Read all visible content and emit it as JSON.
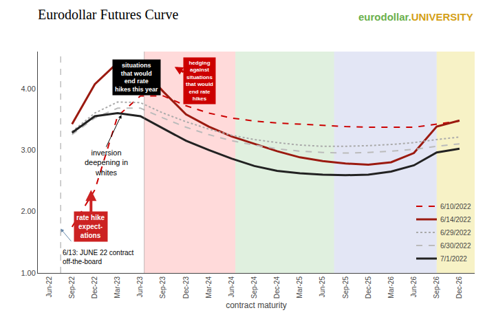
{
  "chart_data": {
    "type": "line",
    "title": "Eurodollar Futures Curve",
    "xlabel": "contract maturity",
    "categories": [
      "Jun-22",
      "Sep-22",
      "Dec-22",
      "Mar-23",
      "Jun-23",
      "Sep-23",
      "Dec-23",
      "Mar-24",
      "Jun-24",
      "Sep-24",
      "Dec-24",
      "Mar-25",
      "Jun-25",
      "Sep-25",
      "Dec-25",
      "Mar-26",
      "Jun-26",
      "Sep-26",
      "Dec-26"
    ],
    "series": [
      {
        "name": "6/10/2022",
        "color": "#cc0000",
        "line_style": "dashed",
        "values": [
          null,
          1.75,
          2.35,
          3.55,
          3.88,
          3.88,
          3.72,
          3.6,
          3.52,
          3.47,
          3.44,
          3.42,
          3.4,
          3.38,
          3.37,
          3.37,
          3.37,
          3.42,
          3.47
        ]
      },
      {
        "name": "6/14/2022",
        "color": "#9b1a10",
        "line_style": "solid",
        "values": [
          null,
          3.42,
          4.07,
          4.42,
          4.35,
          3.95,
          3.58,
          3.38,
          3.22,
          3.1,
          2.98,
          2.88,
          2.82,
          2.78,
          2.76,
          2.8,
          2.95,
          3.38,
          3.48
        ]
      },
      {
        "name": "6/29/2022",
        "color": "#aaaaaa",
        "line_style": "dotted",
        "values": [
          null,
          3.3,
          3.6,
          3.78,
          3.77,
          3.6,
          3.46,
          3.34,
          3.24,
          3.17,
          3.12,
          3.08,
          3.06,
          3.06,
          3.07,
          3.09,
          3.12,
          3.17,
          3.21
        ]
      },
      {
        "name": "6/30/2022",
        "color": "#bbbbbb",
        "line_style": "dashed",
        "values": [
          null,
          3.25,
          3.52,
          3.68,
          3.68,
          3.52,
          3.37,
          3.25,
          3.15,
          3.08,
          3.02,
          2.98,
          2.96,
          2.95,
          2.96,
          2.98,
          3.01,
          3.06,
          3.1
        ]
      },
      {
        "name": "7/1/2022",
        "color": "#222222",
        "line_style": "solid",
        "values": [
          null,
          3.28,
          3.55,
          3.6,
          3.55,
          3.35,
          3.15,
          3.0,
          2.86,
          2.74,
          2.66,
          2.62,
          2.6,
          2.59,
          2.6,
          2.65,
          2.75,
          2.96,
          3.02
        ]
      }
    ],
    "ylim": [
      1.0,
      4.6
    ],
    "yticks": [
      {
        "value": 1.0,
        "label": "1.00"
      },
      {
        "value": 2.0,
        "label": "2.00"
      },
      {
        "value": 3.0,
        "label": "3.00"
      },
      {
        "value": 4.0,
        "label": "4.00"
      }
    ],
    "grid": false,
    "legend": "lower right",
    "annotations": [
      {
        "text": "eurodollar.",
        "color": "#6ab04c"
      },
      {
        "text": "UNIVERSITY",
        "color": "#d4a017"
      },
      {
        "text": "inversion\ndeepening in\nwhites"
      },
      {
        "text": "rate hike\nexpect-\nations"
      },
      {
        "text": "6/13: JUNE 22 contract\noff-the-board"
      },
      {
        "text": "situations\nthat would\nend rate\nhikes this year"
      },
      {
        "text": "hedging\nagainst\nsituations\nthat would\nend rate\nhikes"
      }
    ]
  }
}
